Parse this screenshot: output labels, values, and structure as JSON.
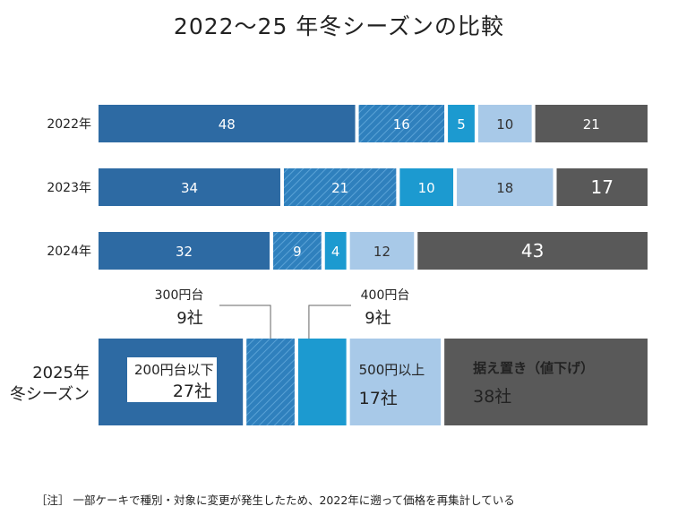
{
  "title": "2022～25 年冬シーズンの比較",
  "note": "［注］ 一部ケーキで種別・対象に変更が発生したため、2022年に遡って価格を再集計している",
  "colors": {
    "s200": "#2d6aa3",
    "s300_base": "#2f80bd",
    "s300_stripe": "#5aa2d6",
    "s400": "#1c9ad0",
    "s500": "#a8c9e8",
    "hold": "#595959"
  },
  "chart_data": {
    "type": "bar",
    "orientation": "horizontal-stacked-100",
    "categories": [
      "2022年",
      "2023年",
      "2024年"
    ],
    "series": [
      {
        "key": "s200",
        "values": [
          48,
          34,
          32
        ]
      },
      {
        "key": "s300",
        "values": [
          16,
          21,
          9
        ]
      },
      {
        "key": "s400",
        "values": [
          5,
          10,
          4
        ]
      },
      {
        "key": "s500",
        "values": [
          10,
          18,
          12
        ]
      },
      {
        "key": "hold",
        "values": [
          21,
          17,
          43
        ]
      }
    ],
    "season2025": {
      "label_line1": "2025年",
      "label_line2": "冬シーズン",
      "segments": [
        {
          "key": "s200",
          "name": "200円台以下",
          "value": 27,
          "value_text": "27社"
        },
        {
          "key": "s300",
          "name": "300円台",
          "value": 9,
          "value_text": "9社"
        },
        {
          "key": "s400",
          "name": "400円台",
          "value": 9,
          "value_text": "9社"
        },
        {
          "key": "s500",
          "name": "500円以上",
          "value": 17,
          "value_text": "17社"
        },
        {
          "key": "hold",
          "name": "据え置き（値下げ）",
          "value": 38,
          "value_text": "38社"
        }
      ]
    }
  }
}
